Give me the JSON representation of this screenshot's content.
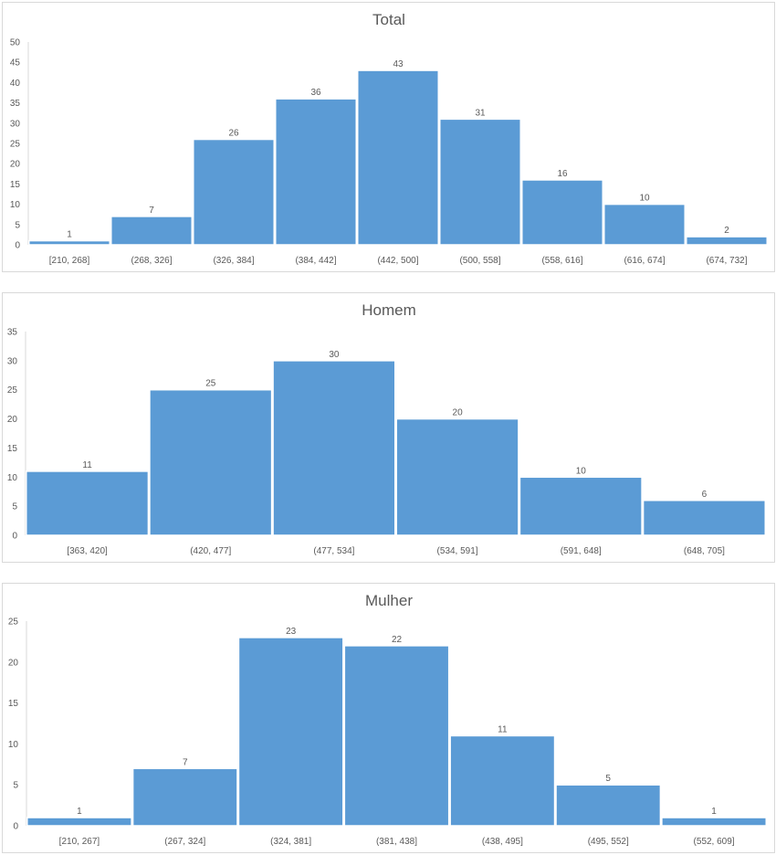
{
  "chart_data": [
    {
      "type": "bar",
      "title": "Total",
      "categories": [
        "[210, 268]",
        "(268, 326]",
        "(326, 384]",
        "(384, 442]",
        "(442, 500]",
        "(500, 558]",
        "(558, 616]",
        "(616, 674]",
        "(674, 732]"
      ],
      "values": [
        1,
        7,
        26,
        36,
        43,
        31,
        16,
        10,
        2
      ],
      "ylim": [
        0,
        50
      ],
      "yticks": [
        0,
        5,
        10,
        15,
        20,
        25,
        30,
        35,
        40,
        45,
        50
      ],
      "grid": false,
      "bar_color": "#5b9bd5"
    },
    {
      "type": "bar",
      "title": "Homem",
      "categories": [
        "[363, 420]",
        "(420, 477]",
        "(477, 534]",
        "(534, 591]",
        "(591, 648]",
        "(648, 705]"
      ],
      "values": [
        11,
        25,
        30,
        20,
        10,
        6
      ],
      "ylim": [
        0,
        35
      ],
      "yticks": [
        0,
        5,
        10,
        15,
        20,
        25,
        30,
        35
      ],
      "grid": false,
      "bar_color": "#5b9bd5"
    },
    {
      "type": "bar",
      "title": "Mulher",
      "categories": [
        "[210, 267]",
        "(267, 324]",
        "(324, 381]",
        "(381, 438]",
        "(438, 495]",
        "(495, 552]",
        "(552, 609]"
      ],
      "values": [
        1,
        7,
        23,
        22,
        11,
        5,
        1
      ],
      "ylim": [
        0,
        25
      ],
      "yticks": [
        0,
        5,
        10,
        15,
        20,
        25
      ],
      "grid": false,
      "bar_color": "#5b9bd5"
    }
  ]
}
